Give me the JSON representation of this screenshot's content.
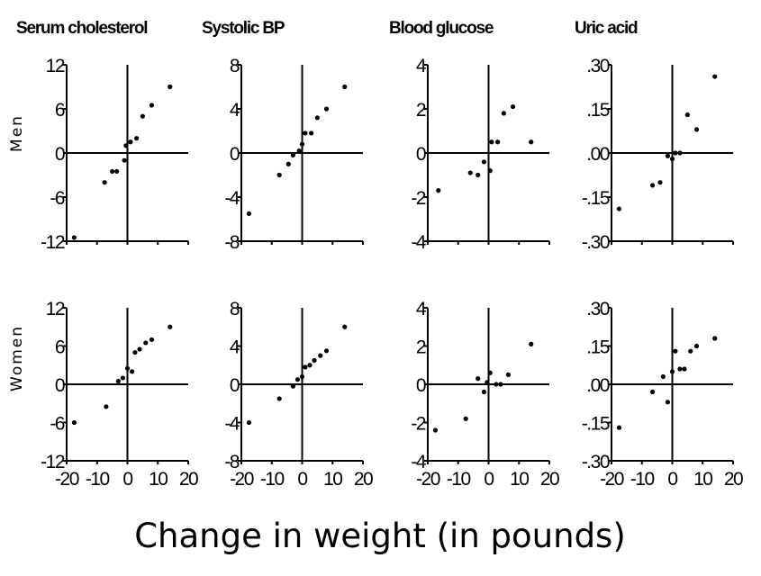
{
  "figure": {
    "xlabel": "Change in weight (in pounds)",
    "row_labels": [
      "Men",
      "Women"
    ],
    "column_titles": [
      "Serum cholesterol",
      "Systolic BP",
      "Blood glucose",
      "Uric acid"
    ],
    "x_tick_labels": [
      "-20",
      "-10",
      "0",
      "10",
      "20"
    ]
  },
  "chart_data": [
    {
      "type": "scatter",
      "title": "Serum cholesterol",
      "row": "Men",
      "xlim": [
        -20,
        20
      ],
      "ylim": [
        -12,
        12
      ],
      "ytick_labels": [
        "12",
        "6",
        "0",
        "-6",
        "-12"
      ],
      "x": [
        -17.5,
        -7.5,
        -5,
        -3.5,
        -1,
        -0.5,
        1,
        3,
        5,
        8,
        14
      ],
      "y": [
        -11.5,
        -4,
        -2.5,
        -2.5,
        -1,
        1,
        1.5,
        2,
        5,
        6.5,
        9
      ]
    },
    {
      "type": "scatter",
      "title": "Systolic BP",
      "row": "Men",
      "xlim": [
        -20,
        20
      ],
      "ylim": [
        -8,
        8
      ],
      "ytick_labels": [
        "8",
        "4",
        "0",
        "-4",
        "-8"
      ],
      "x": [
        -17.5,
        -7.5,
        -4.5,
        -3,
        -1,
        0,
        1,
        3,
        5,
        8,
        14
      ],
      "y": [
        -5.5,
        -2,
        -1,
        -0.2,
        0.2,
        0.8,
        1.8,
        1.8,
        3.2,
        4,
        6
      ]
    },
    {
      "type": "scatter",
      "title": "Blood glucose",
      "row": "Men",
      "xlim": [
        -20,
        20
      ],
      "ylim": [
        -4,
        4
      ],
      "ytick_labels": [
        "4",
        "2",
        "0",
        "-2",
        "-4"
      ],
      "x": [
        -16.5,
        -6,
        -3.5,
        -1.5,
        0.5,
        1,
        3,
        5,
        8,
        14
      ],
      "y": [
        -1.7,
        -0.9,
        -1,
        -0.4,
        -0.8,
        0.5,
        0.5,
        1.8,
        2.1,
        0.5
      ]
    },
    {
      "type": "scatter",
      "title": "Uric acid",
      "row": "Men",
      "xlim": [
        -20,
        20
      ],
      "ylim": [
        -0.3,
        0.3
      ],
      "ytick_labels": [
        ".30",
        ".15",
        ".00",
        "-.15",
        "-.30"
      ],
      "x": [
        -17.5,
        -6.5,
        -4,
        -1.5,
        0,
        1,
        2.5,
        5,
        8,
        14
      ],
      "y": [
        -0.19,
        -0.11,
        -0.1,
        -0.01,
        -0.02,
        0,
        0,
        0.13,
        0.08,
        0.26
      ]
    },
    {
      "type": "scatter",
      "title": "Serum cholesterol",
      "row": "Women",
      "xlim": [
        -20,
        20
      ],
      "ylim": [
        -12,
        12
      ],
      "ytick_labels": [
        "12",
        "6",
        "0",
        "-6",
        "-12"
      ],
      "x": [
        -17.5,
        -7,
        -3,
        -1.5,
        0,
        1.5,
        2.5,
        4,
        6,
        8,
        14
      ],
      "y": [
        -6,
        -3.5,
        0.5,
        1,
        2.5,
        2,
        5,
        5.5,
        6.5,
        7,
        9
      ]
    },
    {
      "type": "scatter",
      "title": "Systolic BP",
      "row": "Women",
      "xlim": [
        -20,
        20
      ],
      "ylim": [
        -8,
        8
      ],
      "ytick_labels": [
        "8",
        "4",
        "0",
        "-4",
        "-8"
      ],
      "x": [
        -17.5,
        -7.5,
        -3,
        -1.5,
        0,
        1,
        2.5,
        4,
        6,
        8,
        14
      ],
      "y": [
        -4,
        -1.5,
        -0.2,
        0.5,
        0.8,
        1.8,
        2,
        2.5,
        3,
        3.5,
        6
      ]
    },
    {
      "type": "scatter",
      "title": "Blood glucose",
      "row": "Women",
      "xlim": [
        -20,
        20
      ],
      "ylim": [
        -4,
        4
      ],
      "ytick_labels": [
        "4",
        "2",
        "0",
        "-2",
        "-4"
      ],
      "x": [
        -17.5,
        -7.5,
        -3.5,
        -1.5,
        -0.5,
        0.5,
        2.5,
        4,
        6.5,
        14
      ],
      "y": [
        -2.4,
        -1.8,
        0.3,
        -0.4,
        0.1,
        0.6,
        0,
        0,
        0.5,
        2.1
      ]
    },
    {
      "type": "scatter",
      "title": "Uric acid",
      "row": "Women",
      "xlim": [
        -20,
        20
      ],
      "ylim": [
        -0.3,
        0.3
      ],
      "ytick_labels": [
        ".30",
        ".15",
        ".00",
        "-.15",
        "-.30"
      ],
      "x": [
        -17.5,
        -6.5,
        -3,
        -1.5,
        0,
        1,
        2.5,
        4,
        6,
        8,
        14
      ],
      "y": [
        -0.17,
        -0.03,
        0.03,
        -0.07,
        0.05,
        0.13,
        0.06,
        0.06,
        0.13,
        0.15,
        0.18
      ]
    }
  ]
}
